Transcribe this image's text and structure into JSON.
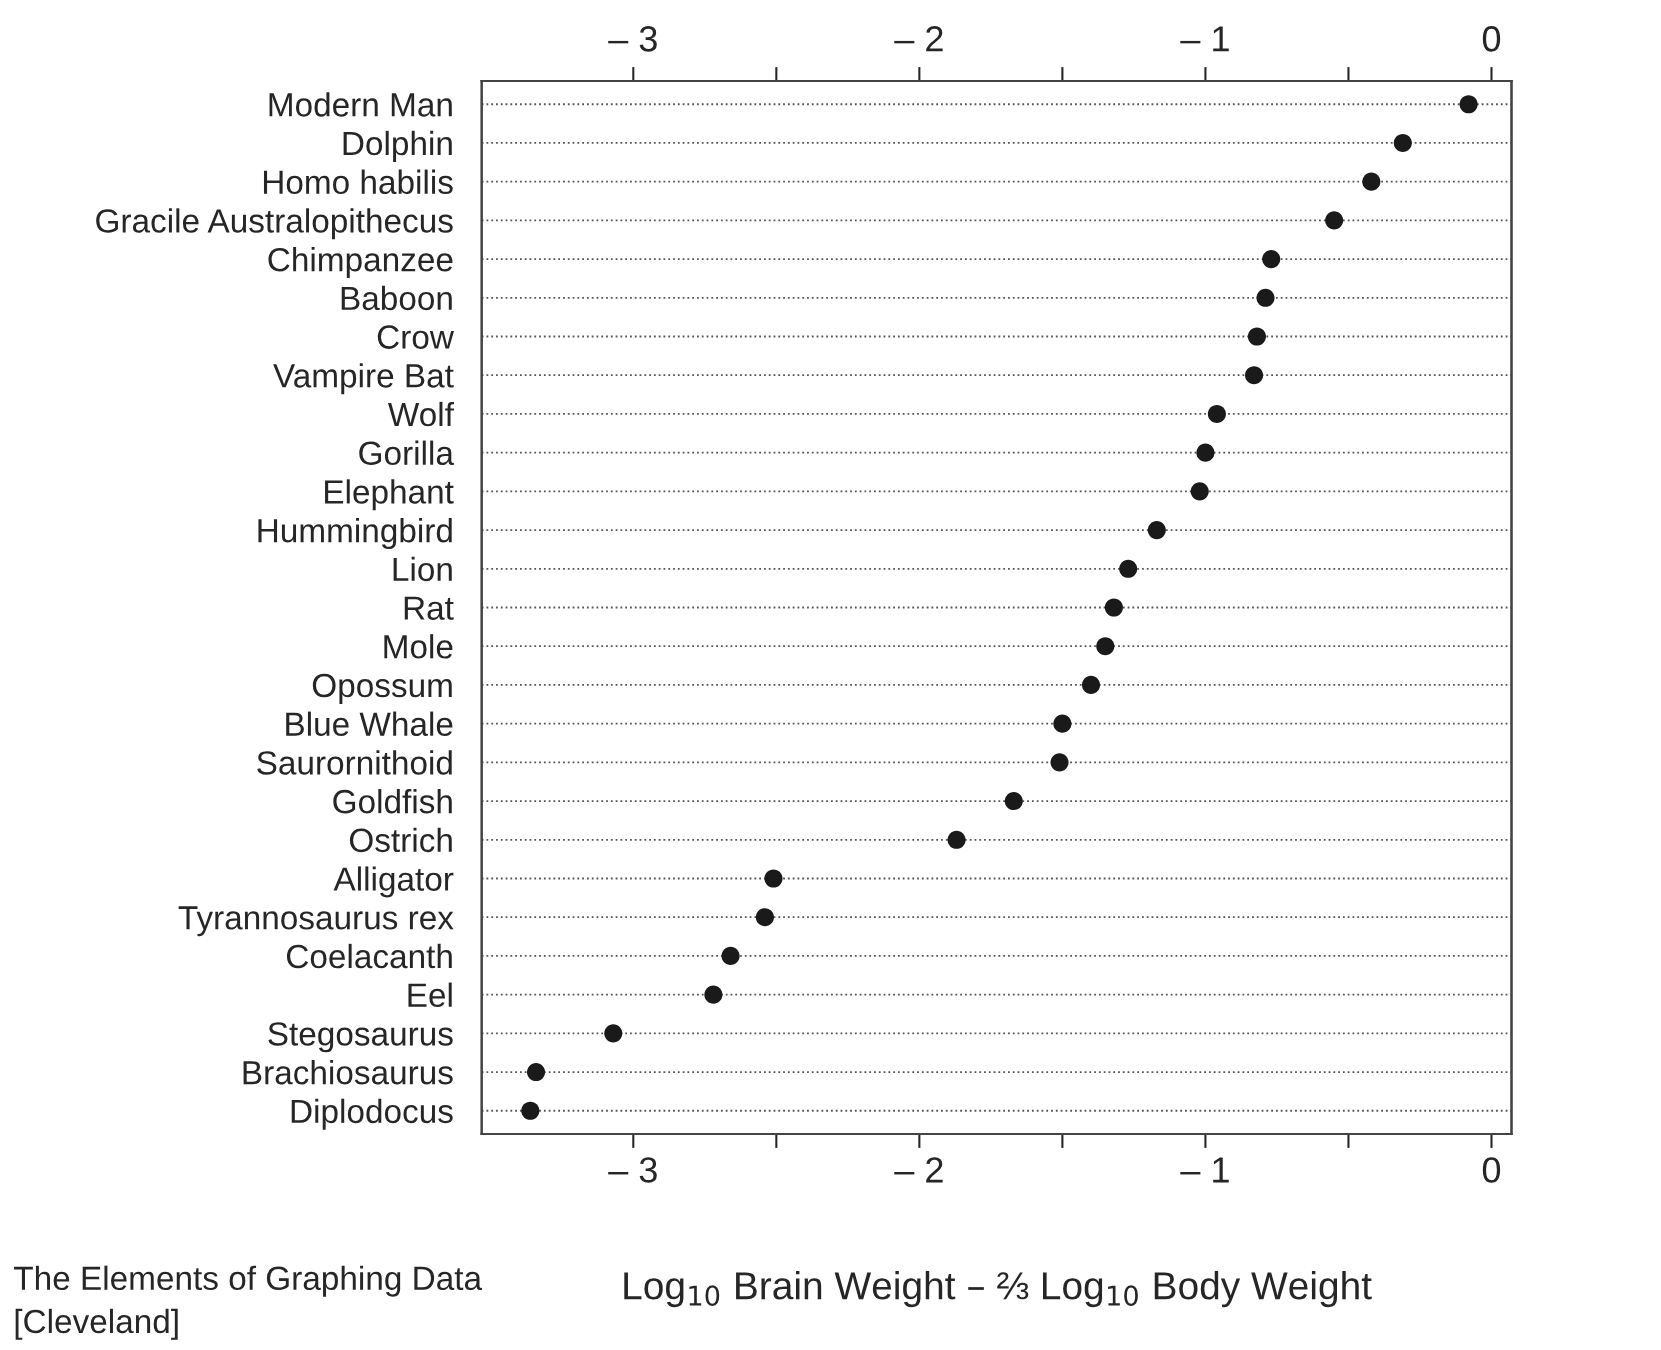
{
  "chart_data": {
    "type": "scatter",
    "orientation": "horizontal",
    "categories": [
      "Modern Man",
      "Dolphin",
      "Homo habilis",
      "Gracile Australopithecus",
      "Chimpanzee",
      "Baboon",
      "Crow",
      "Vampire Bat",
      "Wolf",
      "Gorilla",
      "Elephant",
      "Hummingbird",
      "Lion",
      "Rat",
      "Mole",
      "Opossum",
      "Blue Whale",
      "Saurornithoid",
      "Goldfish",
      "Ostrich",
      "Alligator",
      "Tyrannosaurus rex",
      "Coelacanth",
      "Eel",
      "Stegosaurus",
      "Brachiosaurus",
      "Diplodocus"
    ],
    "values": [
      -0.08,
      -0.31,
      -0.42,
      -0.55,
      -0.77,
      -0.79,
      -0.82,
      -0.83,
      -0.96,
      -1.0,
      -1.02,
      -1.17,
      -1.27,
      -1.32,
      -1.35,
      -1.4,
      -1.5,
      -1.51,
      -1.67,
      -1.87,
      -2.51,
      -2.54,
      -2.66,
      -2.72,
      -3.07,
      -3.34,
      -3.36
    ],
    "color": "#1a1a1a",
    "marker": "circle",
    "xlabel": "Log$_{10}$ Brain Weight – ⅔ Log$_{10}$ Body Weight",
    "xlim": [
      -3.53,
      0.07
    ],
    "xticks": [
      {
        "value": -3,
        "label": "– 3"
      },
      {
        "value": -2.5,
        "label": null
      },
      {
        "value": -2,
        "label": "– 2"
      },
      {
        "value": -1.5,
        "label": null
      },
      {
        "value": -1,
        "label": "– 1"
      },
      {
        "value": -0.5,
        "label": null
      },
      0
    ],
    "x2lim": [
      -3.53,
      0.07
    ],
    "x2ticks": [
      {
        "value": -3,
        "label": "– 3"
      },
      {
        "value": -2.5,
        "label": null
      },
      {
        "value": -2,
        "label": "– 2"
      },
      {
        "value": -1.5,
        "label": null
      },
      {
        "value": -1,
        "label": "– 1"
      },
      {
        "value": -0.5,
        "label": null
      },
      0
    ],
    "grid": "y",
    "line_style": "dotted",
    "annotations": [
      "The Elements of Graphing Data\n[Cleveland]"
    ]
  }
}
